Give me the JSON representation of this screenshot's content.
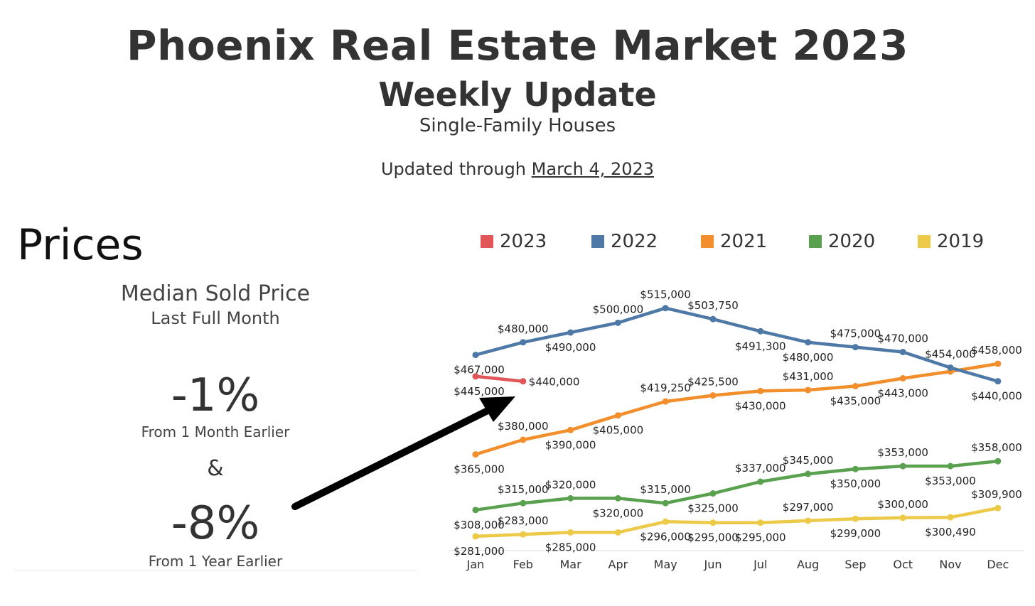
{
  "header": {
    "title": "Phoenix Real Estate Market 2023",
    "subtitle": "Weekly Update",
    "subsubtitle": "Single-Family Houses",
    "updated_prefix": "Updated through ",
    "updated_date": "March 4, 2023"
  },
  "section_title": "Prices",
  "panel": {
    "title": "Median Sold Price",
    "subtitle": "Last Full Month",
    "month_change": "-1%",
    "month_caption": "From 1 Month Earlier",
    "ampersand": "&",
    "year_change": "-8%",
    "year_caption": "From 1 Year Earlier"
  },
  "chart_data": {
    "type": "line",
    "categories": [
      "Jan",
      "Feb",
      "Mar",
      "Apr",
      "May",
      "Jun",
      "Jul",
      "Aug",
      "Sep",
      "Oct",
      "Nov",
      "Dec"
    ],
    "ylim": [
      270000,
      525000
    ],
    "grid": false,
    "legend": "top",
    "series": [
      {
        "name": "2023",
        "color": "#e15759",
        "values": [
          445000,
          440000,
          null,
          null,
          null,
          null,
          null,
          null,
          null,
          null,
          null,
          null
        ],
        "labels": [
          "$445,000",
          "$440,000",
          "",
          "",
          "",
          "",
          "",
          "",
          "",
          "",
          "",
          ""
        ]
      },
      {
        "name": "2022",
        "color": "#4e79a7",
        "values": [
          467000,
          480000,
          490000,
          500000,
          515000,
          503750,
          491300,
          480000,
          475000,
          470000,
          454000,
          440000
        ],
        "labels": [
          "$467,000",
          "$480,000",
          "$490,000",
          "$500,000",
          "$515,000",
          "$503,750",
          "$491,300",
          "$480,000",
          "$475,000",
          "$470,000",
          "$454,000",
          "$440,000"
        ]
      },
      {
        "name": "2021",
        "color": "#f28e2b",
        "values": [
          365000,
          380000,
          390000,
          405000,
          419250,
          425500,
          430000,
          431000,
          435000,
          443000,
          450000,
          458000
        ],
        "labels": [
          "$365,000",
          "$380,000",
          "$390,000",
          "$405,000",
          "$419,250",
          "$425,500",
          "$430,000",
          "$431,000",
          "$435,000",
          "$443,000",
          "",
          "$458,000"
        ]
      },
      {
        "name": "2020",
        "color": "#59a14f",
        "values": [
          308000,
          315000,
          320000,
          320000,
          315000,
          325000,
          337000,
          345000,
          350000,
          353000,
          353000,
          358000
        ],
        "labels": [
          "$308,000",
          "$315,000",
          "$320,000",
          "$320,000",
          "$315,000",
          "$325,000",
          "$337,000",
          "$345,000",
          "$350,000",
          "$353,000",
          "$353,000",
          "$358,000"
        ]
      },
      {
        "name": "2019",
        "color": "#edc948",
        "values": [
          281000,
          283000,
          285000,
          285000,
          296000,
          295000,
          295000,
          297000,
          299000,
          300000,
          300490,
          309900
        ],
        "labels": [
          "$281,000",
          "$283,000",
          "$285,000",
          "",
          "$296,000",
          "$295,000",
          "$295,000",
          "$297,000",
          "$299,000",
          "$300,000",
          "$300,490",
          "$309,900"
        ]
      }
    ]
  }
}
